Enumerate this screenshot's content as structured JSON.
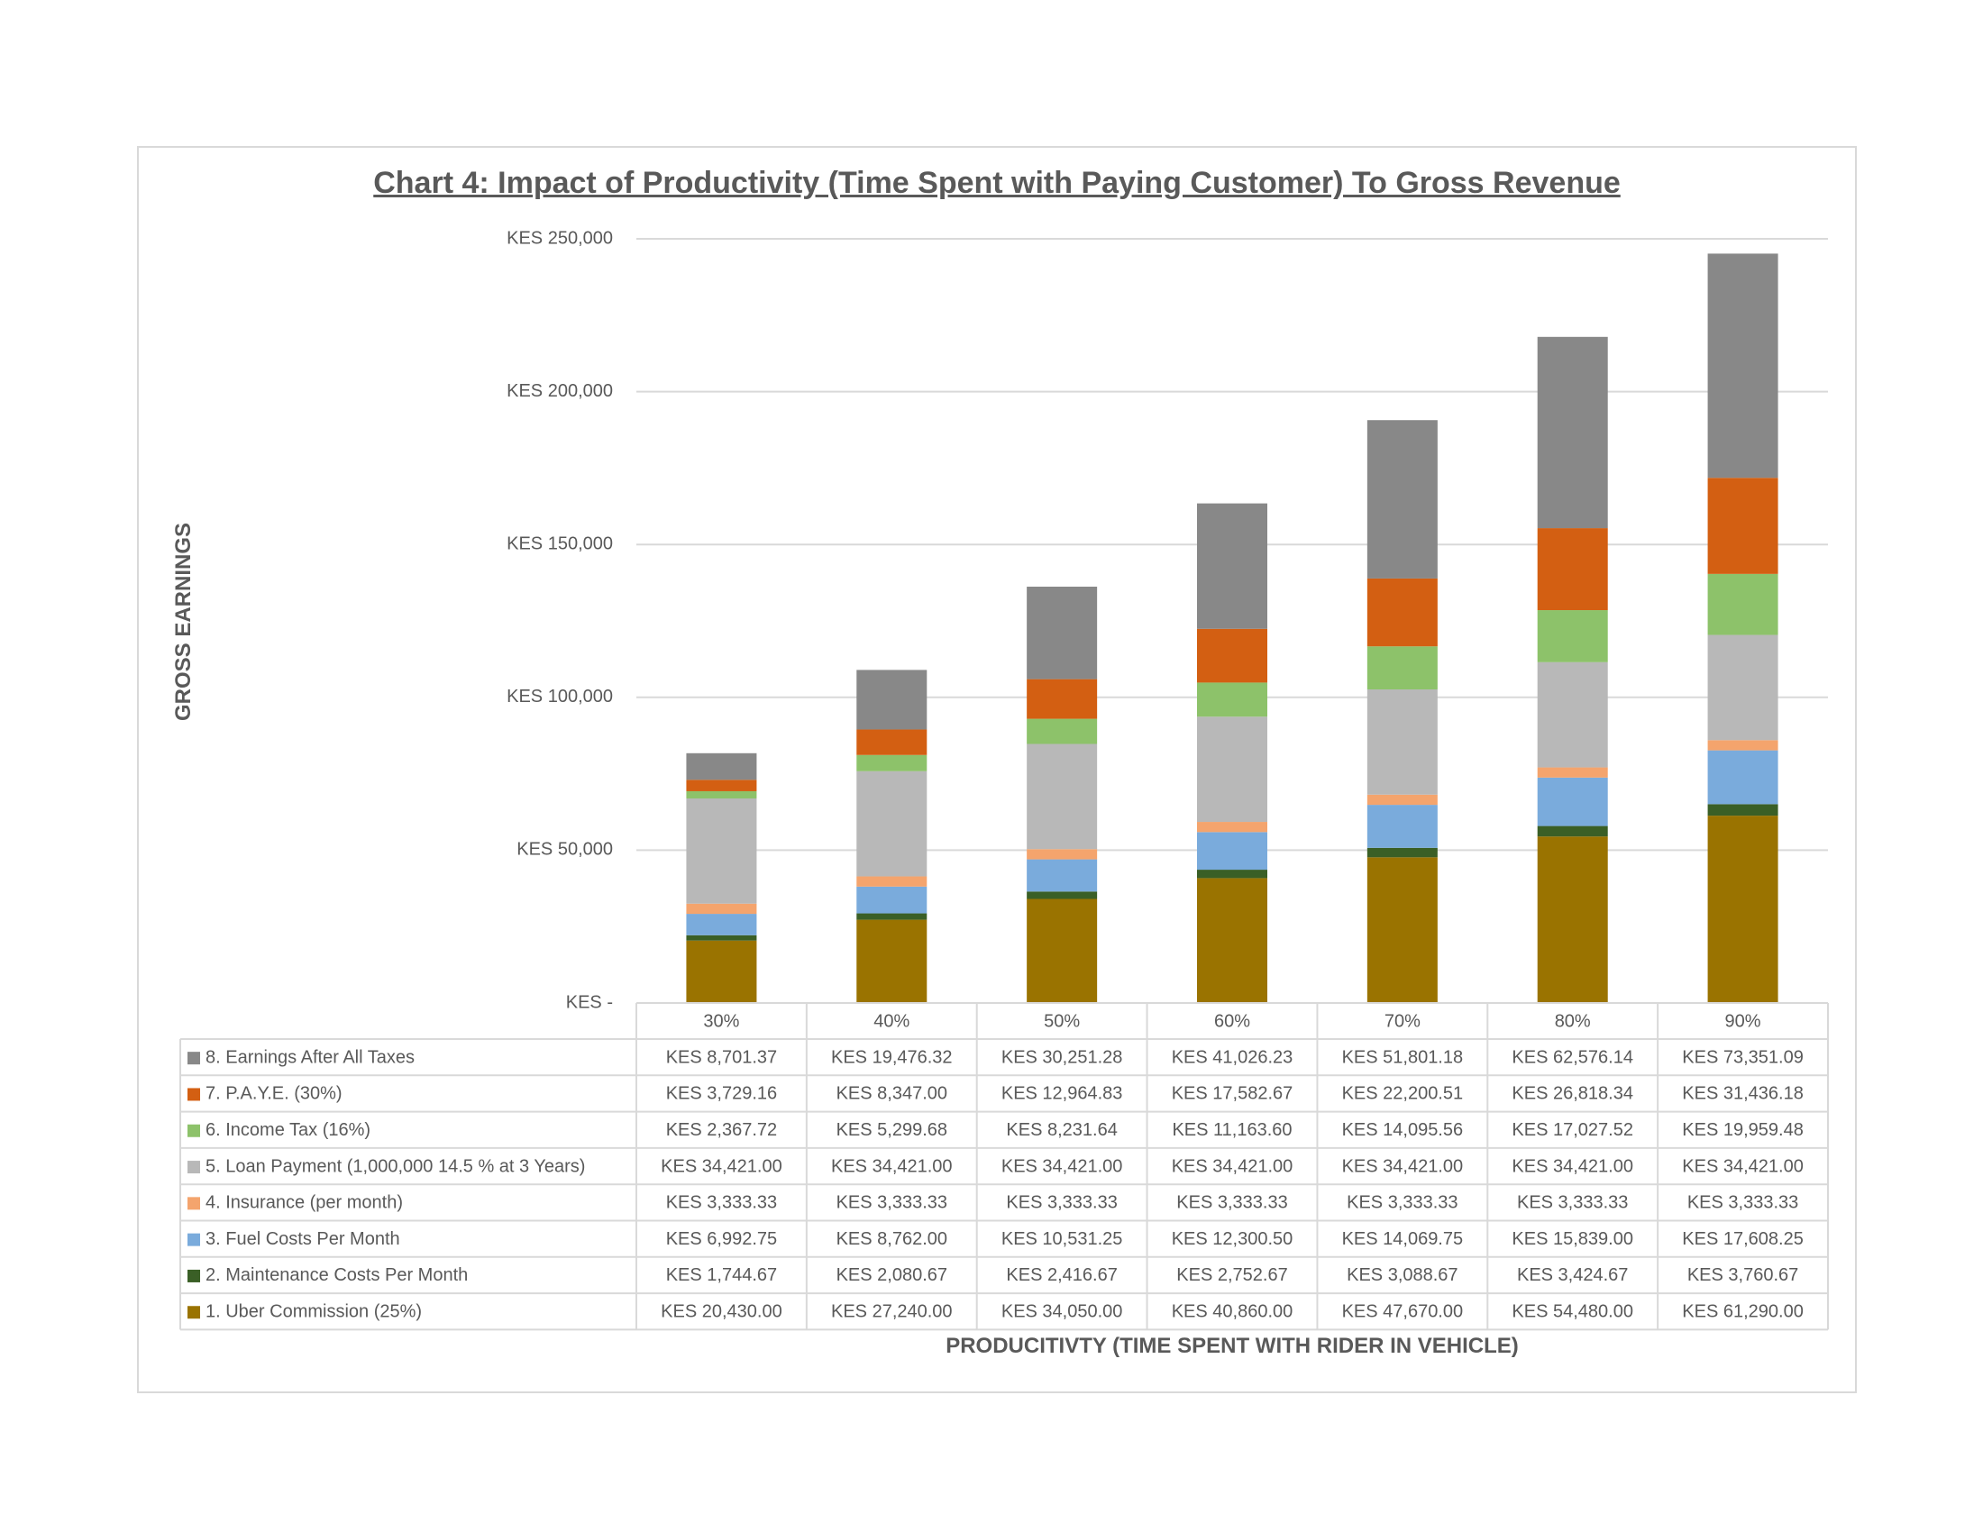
{
  "chart_data": {
    "type": "bar",
    "stacked": true,
    "title": "Chart 4: Impact of Productivity (Time Spent with Paying Customer) To Gross Revenue",
    "ylabel": "GROSS EARNINGS",
    "xlabel": "PRODUCITIVTY (TIME SPENT WITH RIDER IN VEHICLE)",
    "ylim": [
      0,
      250000
    ],
    "yticks": [
      0,
      50000,
      100000,
      150000,
      200000,
      250000
    ],
    "ytick_labels": [
      "KES -",
      "KES 50,000",
      "KES 100,000",
      "KES 150,000",
      "KES 200,000",
      "KES 250,000"
    ],
    "grid": true,
    "legend": "data-table",
    "categories": [
      "30%",
      "40%",
      "50%",
      "60%",
      "70%",
      "80%",
      "90%"
    ],
    "series": [
      {
        "name": "1. Uber Commission (25%)",
        "color": "#9a7300",
        "values": [
          20430.0,
          27240.0,
          34050.0,
          40860.0,
          47670.0,
          54480.0,
          61290.0
        ],
        "labels": [
          "KES 20,430.00",
          "KES 27,240.00",
          "KES 34,050.00",
          "KES 40,860.00",
          "KES 47,670.00",
          "KES 54,480.00",
          "KES 61,290.00"
        ]
      },
      {
        "name": "2. Maintenance Costs Per Month",
        "color": "#3a5f26",
        "values": [
          1744.67,
          2080.67,
          2416.67,
          2752.67,
          3088.67,
          3424.67,
          3760.67
        ],
        "labels": [
          "KES 1,744.67",
          "KES 2,080.67",
          "KES 2,416.67",
          "KES 2,752.67",
          "KES 3,088.67",
          "KES 3,424.67",
          "KES 3,760.67"
        ]
      },
      {
        "name": "3. Fuel Costs Per Month",
        "color": "#7aabdc",
        "values": [
          6992.75,
          8762.0,
          10531.25,
          12300.5,
          14069.75,
          15839.0,
          17608.25
        ],
        "labels": [
          "KES 6,992.75",
          "KES 8,762.00",
          "KES 10,531.25",
          "KES 12,300.50",
          "KES 14,069.75",
          "KES 15,839.00",
          "KES 17,608.25"
        ]
      },
      {
        "name": "4. Insurance (per month)",
        "color": "#f4a46d",
        "values": [
          3333.33,
          3333.33,
          3333.33,
          3333.33,
          3333.33,
          3333.33,
          3333.33
        ],
        "labels": [
          "KES 3,333.33",
          "KES 3,333.33",
          "KES 3,333.33",
          "KES 3,333.33",
          "KES 3,333.33",
          "KES 3,333.33",
          "KES 3,333.33"
        ]
      },
      {
        "name": "5. Loan Payment (1,000,000 14.5 % at 3 Years)",
        "color": "#b8b8b8",
        "values": [
          34421.0,
          34421.0,
          34421.0,
          34421.0,
          34421.0,
          34421.0,
          34421.0
        ],
        "labels": [
          "KES 34,421.00",
          "KES 34,421.00",
          "KES 34,421.00",
          "KES 34,421.00",
          "KES 34,421.00",
          "KES 34,421.00",
          "KES 34,421.00"
        ]
      },
      {
        "name": "6. Income Tax (16%)",
        "color": "#8dc26a",
        "values": [
          2367.72,
          5299.68,
          8231.64,
          11163.6,
          14095.56,
          17027.52,
          19959.48
        ],
        "labels": [
          "KES 2,367.72",
          "KES 5,299.68",
          "KES 8,231.64",
          "KES 11,163.60",
          "KES 14,095.56",
          "KES 17,027.52",
          "KES 19,959.48"
        ]
      },
      {
        "name": "7. P.A.Y.E. (30%)",
        "color": "#d35f12",
        "values": [
          3729.16,
          8347.0,
          12964.83,
          17582.67,
          22200.51,
          26818.34,
          31436.18
        ],
        "labels": [
          "KES 3,729.16",
          "KES 8,347.00",
          "KES 12,964.83",
          "KES 17,582.67",
          "KES 22,200.51",
          "KES 26,818.34",
          "KES 31,436.18"
        ]
      },
      {
        "name": "8. Earnings After All Taxes",
        "color": "#888888",
        "values": [
          8701.37,
          19476.32,
          30251.28,
          41026.23,
          51801.18,
          62576.14,
          73351.09
        ],
        "labels": [
          "KES 8,701.37",
          "KES 19,476.32",
          "KES 30,251.28",
          "KES 41,026.23",
          "KES 51,801.18",
          "KES 62,576.14",
          "KES 73,351.09"
        ]
      }
    ]
  }
}
